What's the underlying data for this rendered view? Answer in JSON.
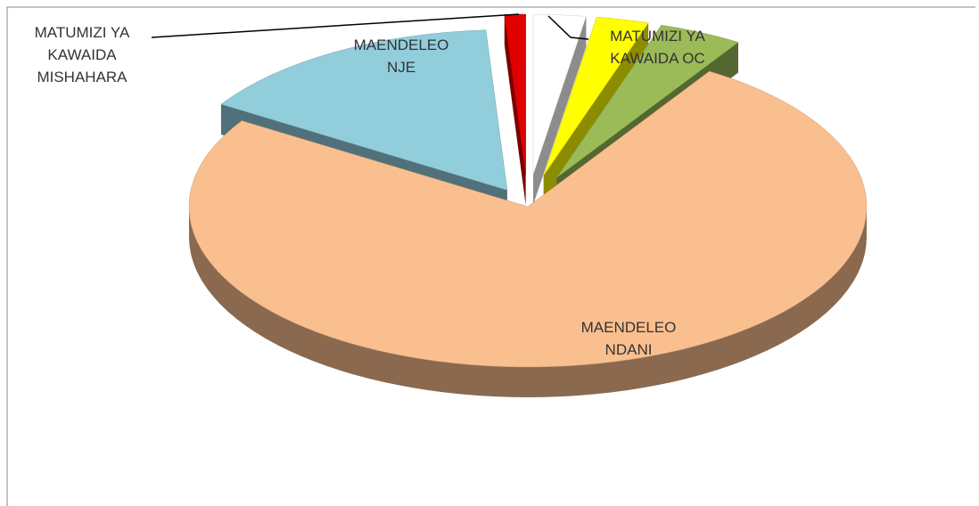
{
  "chart_data": {
    "type": "pie3d",
    "categories": [
      null,
      "MATUMIZI YA KAWAIDA OC",
      null,
      "MAENDELEO NDANI",
      "MAENDELEO NJE",
      "MATUMIZI YA KAWAIDA MISHAHARA"
    ],
    "values": [
      2.5,
      2.5,
      4,
      75,
      15,
      1
    ],
    "colors": [
      "#ffffff",
      "#ffff00",
      "#9bbb59",
      "#fabf8f",
      "#92cddc",
      "#e00000"
    ]
  }
}
